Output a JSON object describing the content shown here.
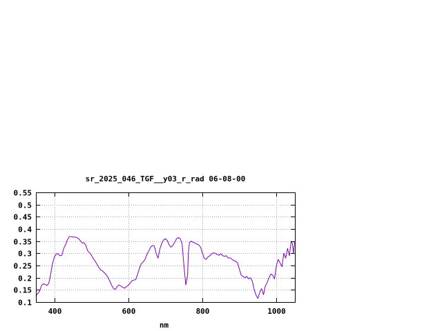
{
  "chart_data": {
    "type": "line",
    "title": "sr_2025_046_TGF__y03_r_rad 06-08-00",
    "xlabel": "nm",
    "ylabel": "",
    "xlim": [
      350,
      1050
    ],
    "ylim": [
      0.1,
      0.55
    ],
    "x_ticks": [
      400,
      600,
      800,
      1000
    ],
    "x_tick_labels": [
      "400",
      "600",
      "800",
      "1000"
    ],
    "y_ticks": [
      0.1,
      0.15,
      0.2,
      0.25,
      0.3,
      0.35,
      0.4,
      0.45,
      0.5,
      0.55
    ],
    "y_tick_labels": [
      "0.1",
      "0.15",
      "0.2",
      "0.25",
      "0.3",
      "0.35",
      "0.4",
      "0.45",
      "0.5",
      "0.55"
    ],
    "grid": true,
    "legend": "none",
    "colors": {
      "series": "#8000c0",
      "grid": "#a0a0a0",
      "axis": "#000000"
    },
    "series": [
      {
        "x": [
          350,
          355,
          360,
          365,
          370,
          375,
          380,
          385,
          390,
          395,
          400,
          405,
          410,
          415,
          420,
          425,
          430,
          435,
          440,
          445,
          450,
          455,
          460,
          465,
          470,
          475,
          480,
          485,
          490,
          495,
          500,
          505,
          510,
          515,
          520,
          525,
          530,
          535,
          540,
          545,
          550,
          555,
          560,
          565,
          570,
          575,
          580,
          585,
          590,
          595,
          600,
          605,
          610,
          615,
          620,
          625,
          630,
          635,
          640,
          645,
          650,
          655,
          660,
          665,
          670,
          675,
          680,
          685,
          690,
          695,
          700,
          705,
          710,
          715,
          720,
          725,
          730,
          735,
          740,
          745,
          750,
          755,
          760,
          762,
          765,
          770,
          775,
          780,
          785,
          790,
          795,
          800,
          805,
          810,
          815,
          820,
          825,
          830,
          835,
          840,
          845,
          850,
          855,
          860,
          865,
          870,
          875,
          880,
          885,
          890,
          895,
          900,
          905,
          910,
          915,
          920,
          925,
          930,
          935,
          940,
          945,
          950,
          955,
          960,
          965,
          970,
          975,
          980,
          985,
          990,
          995,
          1000,
          1005,
          1010,
          1015,
          1020,
          1025,
          1030,
          1035,
          1040,
          1043,
          1046,
          1048,
          1050
        ],
        "y": [
          0.125,
          0.135,
          0.145,
          0.168,
          0.175,
          0.172,
          0.168,
          0.178,
          0.215,
          0.26,
          0.285,
          0.298,
          0.298,
          0.29,
          0.292,
          0.32,
          0.335,
          0.355,
          0.368,
          0.368,
          0.367,
          0.367,
          0.365,
          0.36,
          0.352,
          0.342,
          0.343,
          0.333,
          0.31,
          0.302,
          0.292,
          0.278,
          0.268,
          0.255,
          0.242,
          0.232,
          0.228,
          0.22,
          0.212,
          0.2,
          0.185,
          0.168,
          0.155,
          0.152,
          0.165,
          0.17,
          0.165,
          0.16,
          0.157,
          0.163,
          0.17,
          0.178,
          0.188,
          0.19,
          0.192,
          0.215,
          0.24,
          0.258,
          0.265,
          0.275,
          0.295,
          0.31,
          0.325,
          0.332,
          0.33,
          0.3,
          0.28,
          0.318,
          0.34,
          0.355,
          0.36,
          0.352,
          0.335,
          0.325,
          0.332,
          0.345,
          0.36,
          0.365,
          0.36,
          0.34,
          0.25,
          0.17,
          0.21,
          0.3,
          0.345,
          0.35,
          0.345,
          0.342,
          0.338,
          0.335,
          0.325,
          0.3,
          0.28,
          0.275,
          0.285,
          0.29,
          0.298,
          0.302,
          0.3,
          0.295,
          0.292,
          0.298,
          0.29,
          0.288,
          0.29,
          0.28,
          0.282,
          0.275,
          0.27,
          0.268,
          0.26,
          0.235,
          0.21,
          0.205,
          0.2,
          0.205,
          0.195,
          0.2,
          0.185,
          0.15,
          0.128,
          0.115,
          0.14,
          0.155,
          0.13,
          0.165,
          0.18,
          0.2,
          0.215,
          0.21,
          0.195,
          0.25,
          0.275,
          0.26,
          0.245,
          0.3,
          0.28,
          0.32,
          0.29,
          0.35,
          0.34,
          0.3,
          0.33,
          0.35
        ]
      }
    ]
  }
}
